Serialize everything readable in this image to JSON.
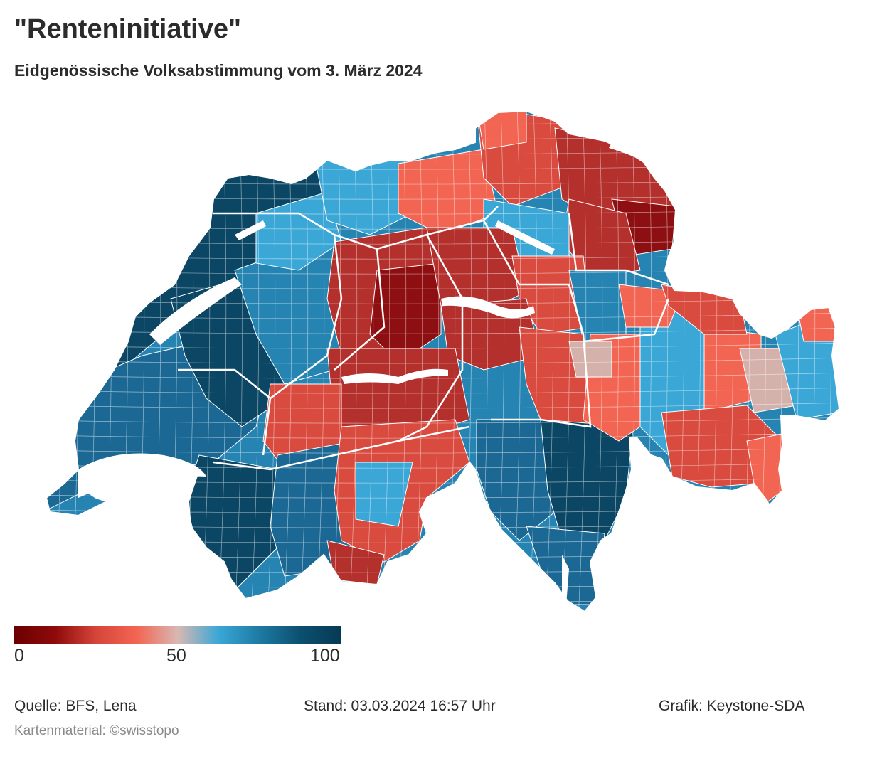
{
  "title": "\"Renteninitiative\"",
  "subtitle": "Eidgenössische Volksabstimmung vom 3. März 2024",
  "legend": {
    "ticks": [
      "0",
      "50",
      "100"
    ],
    "gradient": [
      "#6b0000",
      "#8e0a0a",
      "#d6453a",
      "#f36553",
      "#d8b8b2",
      "#3aa7d6",
      "#1d7aa3",
      "#0c4f6f",
      "#063a55"
    ]
  },
  "colors": {
    "dark_red": "#8e0f12",
    "red": "#b3302d",
    "mid_red": "#d94a3f",
    "light_red": "#f36553",
    "neutral": "#d5b1ab",
    "light_blue": "#3aa7d6",
    "mid_blue": "#2684b2",
    "blue": "#1b6894",
    "dark_blue": "#0b4664"
  },
  "footer": {
    "source": "Quelle: BFS, Lena",
    "status": "Stand: 03.03.2024 16:57 Uhr",
    "credit": "Grafik: Keystone-SDA",
    "map_credit": "Kartenmaterial: ©swisstopo"
  }
}
